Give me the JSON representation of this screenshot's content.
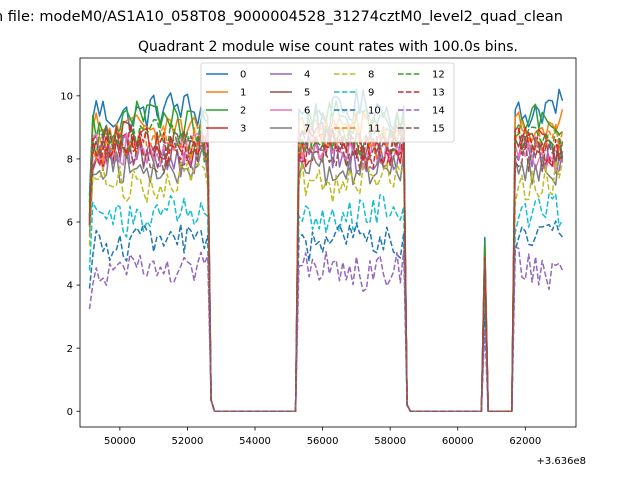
{
  "figure": {
    "suptitle": "n file: modeM0/AS1A10_058T08_9000004528_31274cztM0_level2_quad_clean",
    "title": "Quadrant 2 module wise count rates with 100.0s bins."
  },
  "chart_data": {
    "type": "line",
    "title": "Quadrant 2 module wise count rates with 100.0s bins.",
    "xlabel": "",
    "ylabel": "",
    "x_offset_label": "+3.636e8",
    "xlim": [
      48820,
      63500
    ],
    "ylim": [
      -0.5,
      11.2
    ],
    "x_ticks": [
      50000,
      52000,
      54000,
      56000,
      58000,
      60000,
      62000
    ],
    "x_tick_labels": [
      "50000",
      "52000",
      "54000",
      "56000",
      "58000",
      "60000",
      "62000"
    ],
    "y_ticks": [
      0,
      2,
      4,
      6,
      8,
      10
    ],
    "y_tick_labels": [
      "0",
      "2",
      "4",
      "6",
      "8",
      "10"
    ],
    "grid": false,
    "legend_location": "top-center",
    "legend_columns": 4,
    "segments": [
      {
        "start": 49100,
        "end": 52600,
        "step": 100
      },
      {
        "start": 55300,
        "end": 58400,
        "step": 100
      },
      {
        "start": 61700,
        "end": 63100,
        "step": 100
      }
    ],
    "spike": {
      "x": 60800,
      "fraction": 0.58
    },
    "zero_points": [
      52700,
      52800,
      55200,
      58500,
      58600,
      60700,
      60900,
      61600
    ],
    "series": [
      {
        "name": "0",
        "color": "#1f77b4",
        "dash": "solid",
        "level": 9.5
      },
      {
        "name": "1",
        "color": "#ff7f0e",
        "dash": "solid",
        "level": 9.0
      },
      {
        "name": "2",
        "color": "#2ca02c",
        "dash": "solid",
        "level": 9.2
      },
      {
        "name": "3",
        "color": "#d62728",
        "dash": "solid",
        "level": 8.3
      },
      {
        "name": "4",
        "color": "#9467bd",
        "dash": "solid",
        "level": 8.1
      },
      {
        "name": "5",
        "color": "#8c564b",
        "dash": "solid",
        "level": 8.5
      },
      {
        "name": "6",
        "color": "#e377c2",
        "dash": "solid",
        "level": 8.2
      },
      {
        "name": "7",
        "color": "#7f7f7f",
        "dash": "solid",
        "level": 7.7
      },
      {
        "name": "8",
        "color": "#bcbd22",
        "dash": "dashed",
        "level": 7.3
      },
      {
        "name": "9",
        "color": "#17becf",
        "dash": "dashed",
        "level": 6.2
      },
      {
        "name": "10",
        "color": "#1f77b4",
        "dash": "dashed",
        "level": 5.4
      },
      {
        "name": "11",
        "color": "#ff7f0e",
        "dash": "dashed",
        "level": 8.6
      },
      {
        "name": "12",
        "color": "#2ca02c",
        "dash": "dashed",
        "level": 8.6
      },
      {
        "name": "13",
        "color": "#d62728",
        "dash": "dashed",
        "level": 8.4
      },
      {
        "name": "14",
        "color": "#9467bd",
        "dash": "dashed",
        "level": 4.5
      },
      {
        "name": "15",
        "color": "#8c564b",
        "dash": "dashed",
        "level": 8.2
      }
    ]
  }
}
